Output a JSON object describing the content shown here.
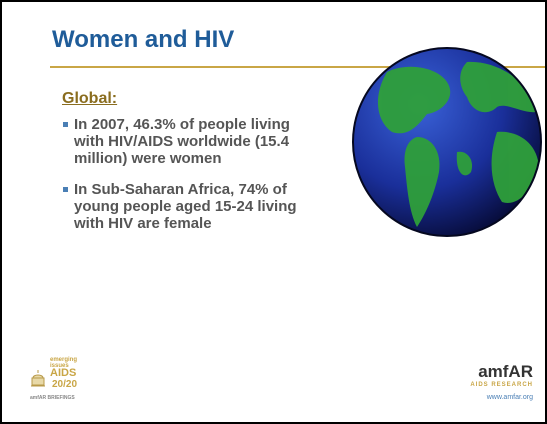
{
  "slide": {
    "title": "Women and HIV",
    "heading": "Global:",
    "bullets": [
      "In 2007, 46.3% of people living with HIV/AIDS worldwide (15.4 million) were women",
      "In Sub-Saharan Africa, 74% of young people aged 15-24 living with HIV are female"
    ],
    "logo_left": {
      "top": "emerging issues",
      "main": "AIDS",
      "sub": "20/20",
      "bottom": "amfAR BRIEFINGS"
    },
    "logo_right": {
      "name": "amfAR",
      "tagline": "AIDS RESEARCH",
      "url": "www.amfar.org"
    }
  }
}
